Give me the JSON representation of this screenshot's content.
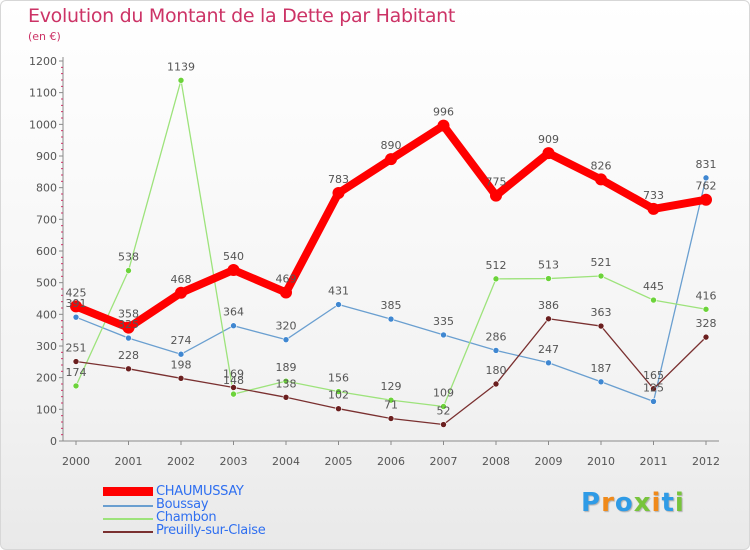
{
  "title": "Evolution du Montant de la Dette par Habitant",
  "subtitle": "(en €)",
  "logo_text": "Proxiti",
  "chart_data": {
    "type": "line",
    "title": "Evolution du Montant de la Dette par Habitant",
    "subtitle": "(en €)",
    "xlabel": "",
    "ylabel": "",
    "x": [
      "2000",
      "2001",
      "2002",
      "2003",
      "2004",
      "2005",
      "2006",
      "2007",
      "2008",
      "2009",
      "2010",
      "2011",
      "2012"
    ],
    "ylim": [
      0,
      1200
    ],
    "yticks": [
      0,
      100,
      200,
      300,
      400,
      500,
      600,
      700,
      800,
      900,
      1000,
      1100,
      1200
    ],
    "grid": false,
    "legend_position": "bottom-left",
    "series": [
      {
        "name": "CHAUMUSSAY",
        "color": "#ff0000",
        "values": [
          425,
          358,
          468,
          540,
          469,
          783,
          890,
          996,
          775,
          909,
          826,
          733,
          762
        ]
      },
      {
        "name": "Boussay",
        "color": "#6a9fd0",
        "marker_color": "#3f87d1",
        "values": [
          391,
          325,
          274,
          364,
          320,
          431,
          385,
          335,
          286,
          247,
          187,
          125,
          831
        ]
      },
      {
        "name": "Chambon",
        "color": "#9de37b",
        "marker_color": "#6cd33a",
        "values": [
          174,
          538,
          1139,
          148,
          189,
          156,
          129,
          109,
          512,
          513,
          521,
          445,
          416
        ]
      },
      {
        "name": "Preuilly-sur-Claise",
        "color": "#7a3030",
        "marker_color": "#6b1f1f",
        "values": [
          251,
          228,
          198,
          169,
          138,
          102,
          71,
          52,
          180,
          386,
          363,
          165,
          328
        ]
      }
    ]
  }
}
